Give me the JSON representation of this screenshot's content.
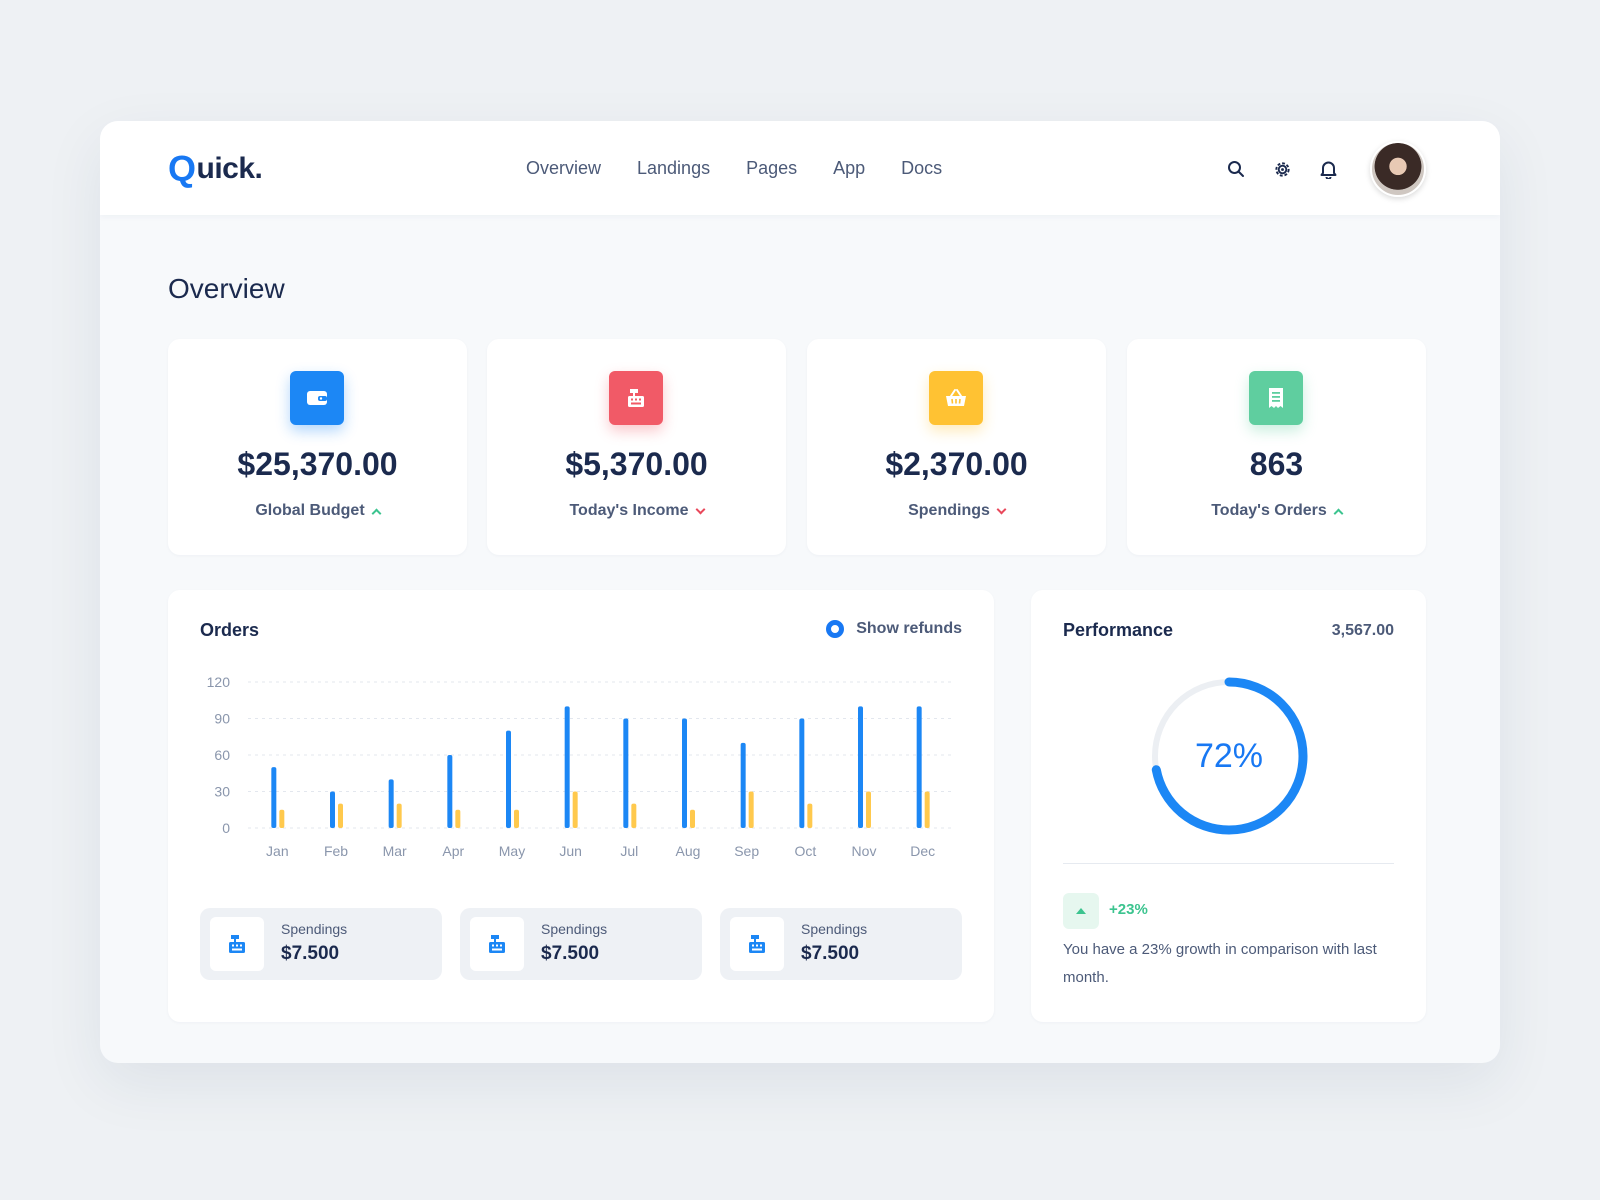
{
  "header": {
    "logo_q": "Q",
    "logo_rest": "uick.",
    "nav": [
      "Overview",
      "Landings",
      "Pages",
      "App",
      "Docs"
    ],
    "icons": [
      "search-icon",
      "gear-icon",
      "bell-icon"
    ]
  },
  "page_title": "Overview",
  "stats": [
    {
      "icon": "wallet-icon",
      "color": "#1c87f5",
      "value": "$25,370.00",
      "label": "Global Budget",
      "trend": "up"
    },
    {
      "icon": "cash-register-icon",
      "color": "#f15a67",
      "value": "$5,370.00",
      "label": "Today's Income",
      "trend": "down"
    },
    {
      "icon": "basket-icon",
      "color": "#ffc233",
      "value": "$2,370.00",
      "label": "Spendings",
      "trend": "down"
    },
    {
      "icon": "receipt-icon",
      "color": "#5fce9f",
      "value": "863",
      "label": "Today's Orders",
      "trend": "up"
    }
  ],
  "orders": {
    "title": "Orders",
    "refunds_label": "Show refunds",
    "mini_cards": [
      {
        "label": "Spendings",
        "value": "$7.500"
      },
      {
        "label": "Spendings",
        "value": "$7.500"
      },
      {
        "label": "Spendings",
        "value": "$7.500"
      }
    ]
  },
  "chart_data": {
    "type": "bar",
    "categories": [
      "Jan",
      "Feb",
      "Mar",
      "Apr",
      "May",
      "Jun",
      "Jul",
      "Aug",
      "Sep",
      "Oct",
      "Nov",
      "Dec"
    ],
    "series": [
      {
        "color": "#1c87f5",
        "values": [
          50,
          30,
          40,
          60,
          80,
          100,
          90,
          90,
          70,
          90,
          100,
          100
        ]
      },
      {
        "color": "#ffc94d",
        "values": [
          15,
          20,
          20,
          15,
          15,
          30,
          20,
          15,
          30,
          20,
          30,
          30
        ]
      }
    ],
    "yticks": [
      0,
      30,
      60,
      90,
      120
    ],
    "ylim": [
      0,
      120
    ],
    "grid": true
  },
  "performance": {
    "title": "Performance",
    "total": "3,567.00",
    "percent_label": "72%",
    "percent": 72,
    "accent": "#1c87f5",
    "growth": "+23%",
    "growth_text": "You have a 23% growth in comparison with last month."
  }
}
